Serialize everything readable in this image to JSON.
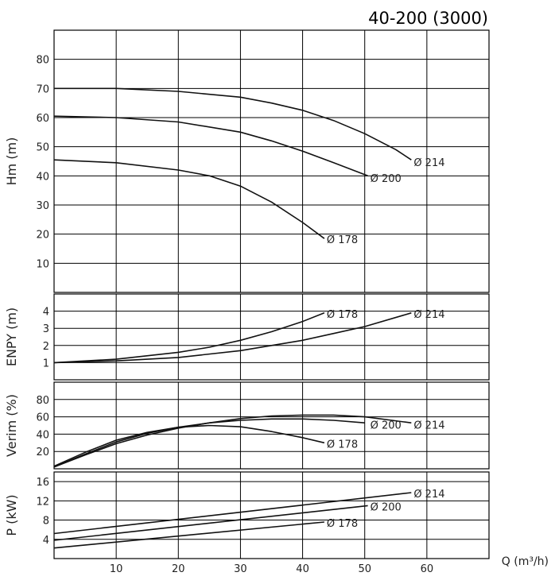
{
  "title": "40-200 (3000)",
  "chart_data": {
    "type": "line",
    "title": "40-200 (3000)",
    "x_axis": {
      "label": "Q (m³/h)",
      "range": [
        0,
        70
      ],
      "ticks": [
        10,
        20,
        30,
        40,
        50,
        60
      ]
    },
    "panels": [
      {
        "id": "hm",
        "ylabel": "Hm (m)",
        "ylim": [
          0,
          90
        ],
        "yticks": [
          10,
          20,
          30,
          40,
          50,
          60,
          70,
          80
        ],
        "series": [
          {
            "name": "Ø 214",
            "x": [
              0,
              10,
              20,
              30,
              35,
              40,
              45,
              50,
              55,
              57.5
            ],
            "y": [
              70,
              70,
              69,
              67,
              65,
              62.5,
              59,
              54.5,
              49,
              45.5
            ]
          },
          {
            "name": "Ø 200",
            "x": [
              0,
              10,
              20,
              30,
              35,
              40,
              45,
              50.5
            ],
            "y": [
              60.5,
              60,
              58.5,
              55,
              52,
              48.5,
              44.5,
              40
            ]
          },
          {
            "name": "Ø 178",
            "x": [
              0,
              10,
              20,
              25,
              30,
              35,
              40,
              43.5
            ],
            "y": [
              45.5,
              44.5,
              42,
              40,
              36.5,
              31,
              24,
              18.5
            ]
          }
        ]
      },
      {
        "id": "npsh",
        "ylabel": "ENPY (m)",
        "ylim": [
          0,
          5
        ],
        "yticks": [
          1,
          2,
          3,
          4
        ],
        "series": [
          {
            "name": "Ø 178",
            "x": [
              0,
              10,
              20,
              25,
              30,
              35,
              40,
              43.5
            ],
            "y": [
              1,
              1.2,
              1.6,
              1.9,
              2.3,
              2.8,
              3.4,
              3.9
            ]
          },
          {
            "name": "Ø 214",
            "x": [
              0,
              10,
              20,
              30,
              40,
              45,
              50,
              57.5
            ],
            "y": [
              1,
              1.1,
              1.3,
              1.7,
              2.3,
              2.7,
              3.1,
              3.9
            ]
          }
        ]
      },
      {
        "id": "eff",
        "ylabel": "Verim (%)",
        "ylim": [
          0,
          100
        ],
        "yticks": [
          20,
          40,
          60,
          80
        ],
        "series": [
          {
            "name": "Ø 200",
            "x": [
              0,
              5,
              10,
              15,
              20,
              25,
              30,
              35,
              40,
              45,
              50
            ],
            "y": [
              2,
              17,
              31,
              41,
              48,
              53,
              56,
              57.5,
              57.5,
              56,
              53
            ]
          },
          {
            "name": "Ø 214",
            "x": [
              0,
              5,
              10,
              15,
              20,
              25,
              30,
              35,
              40,
              45,
              50,
              57.5
            ],
            "y": [
              2,
              16,
              29,
              39,
              47,
              53,
              58,
              61,
              62,
              62,
              60,
              53
            ]
          },
          {
            "name": "Ø 178",
            "x": [
              0,
              5,
              10,
              15,
              20,
              25,
              30,
              35,
              40,
              43.5
            ],
            "y": [
              3,
              19,
              33,
              42,
              48,
              50,
              48.5,
              43,
              36,
              30
            ]
          }
        ]
      },
      {
        "id": "power",
        "ylabel": "P (kW)",
        "ylim": [
          0,
          18
        ],
        "yticks": [
          4,
          8,
          12,
          16
        ],
        "series": [
          {
            "name": "Ø 214",
            "x": [
              0,
              57.5
            ],
            "y": [
              5.2,
              13.7
            ]
          },
          {
            "name": "Ø 200",
            "x": [
              0,
              50.5
            ],
            "y": [
              3.8,
              11
            ]
          },
          {
            "name": "Ø 178",
            "x": [
              0,
              43.5
            ],
            "y": [
              2.2,
              7.6
            ]
          }
        ]
      }
    ],
    "grid": true,
    "curve_labels": [
      {
        "panel": "hm",
        "text": "Ø 214",
        "x": 57.5,
        "y": 45
      },
      {
        "panel": "hm",
        "text": "Ø 200",
        "x": 50.5,
        "y": 39.5
      },
      {
        "panel": "hm",
        "text": "Ø 178",
        "x": 43.5,
        "y": 18.5
      },
      {
        "panel": "npsh",
        "text": "Ø 178",
        "x": 43.5,
        "y": 3.9
      },
      {
        "panel": "npsh",
        "text": "Ø 214",
        "x": 57.5,
        "y": 3.9
      },
      {
        "panel": "eff",
        "text": "Ø 200",
        "x": 50.5,
        "y": 52
      },
      {
        "panel": "eff",
        "text": "Ø 214",
        "x": 57.5,
        "y": 52
      },
      {
        "panel": "eff",
        "text": "Ø 178",
        "x": 43.5,
        "y": 30
      },
      {
        "panel": "power",
        "text": "Ø 214",
        "x": 57.5,
        "y": 13.7
      },
      {
        "panel": "power",
        "text": "Ø 200",
        "x": 50.5,
        "y": 11
      },
      {
        "panel": "power",
        "text": "Ø 178",
        "x": 43.5,
        "y": 7.6
      }
    ]
  }
}
